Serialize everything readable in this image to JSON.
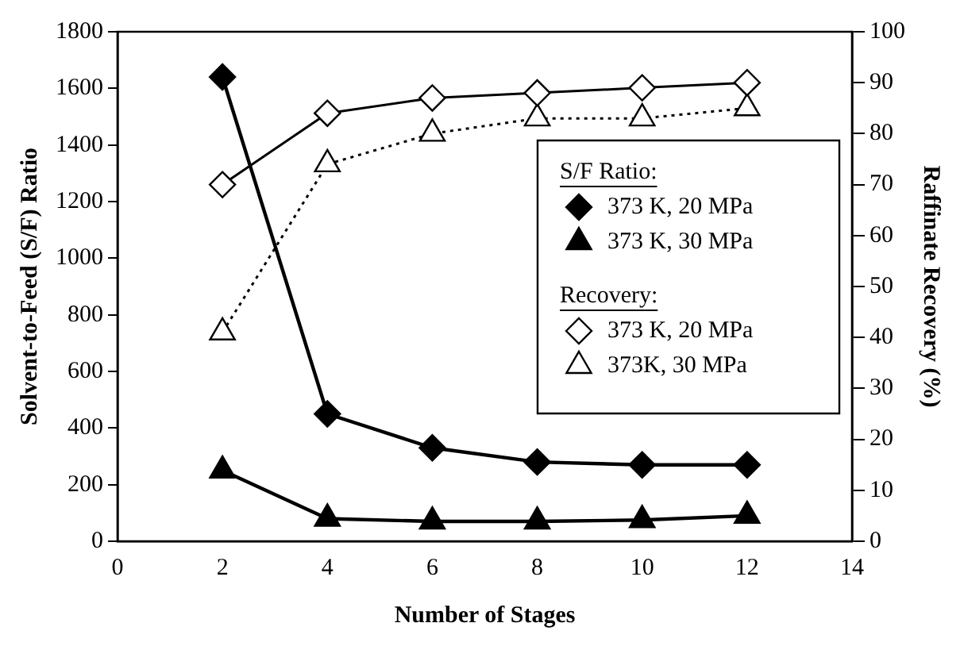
{
  "chart_data": {
    "type": "line",
    "xlabel": "Number of Stages",
    "ylabel": "Solvent-to-Feed (S/F) Ratio",
    "y2label": "Raffinate Recovery (%)",
    "x": [
      2,
      4,
      6,
      8,
      10,
      12
    ],
    "xlim": [
      0,
      14
    ],
    "xticks": [
      0,
      2,
      4,
      6,
      8,
      10,
      12,
      14
    ],
    "ylim": [
      0,
      1800
    ],
    "yticks": [
      0,
      200,
      400,
      600,
      800,
      1000,
      1200,
      1400,
      1600,
      1800
    ],
    "y2lim": [
      0,
      100
    ],
    "y2ticks": [
      0,
      10,
      20,
      30,
      40,
      50,
      60,
      70,
      80,
      90,
      100
    ],
    "grid": false,
    "legend": "center right",
    "annotations": [
      "S/F Ratio:",
      "Recovery:"
    ],
    "series": [
      {
        "name": "373 K, 20 MPa",
        "color": "#000000",
        "marker": "diamond",
        "line_style": "solid",
        "values": [
          1640,
          450,
          330,
          280,
          270,
          270
        ]
      },
      {
        "name": "373 K, 30 MPa",
        "color": "#000000",
        "marker": "triangle",
        "line_style": "solid",
        "values": [
          250,
          80,
          70,
          70,
          75,
          90
        ]
      },
      {
        "name": "373 K, 20 MPa",
        "color": "#000000",
        "marker": "diamond",
        "line_style": "solid",
        "axis": "y2",
        "values": [
          70,
          84,
          87,
          88,
          89,
          90
        ]
      },
      {
        "name": "373K, 30 MPa",
        "color": "#000000",
        "marker": "triangle",
        "line_style": "dotted",
        "axis": "y2",
        "values": [
          41,
          74,
          80,
          83,
          83,
          85
        ]
      }
    ]
  }
}
